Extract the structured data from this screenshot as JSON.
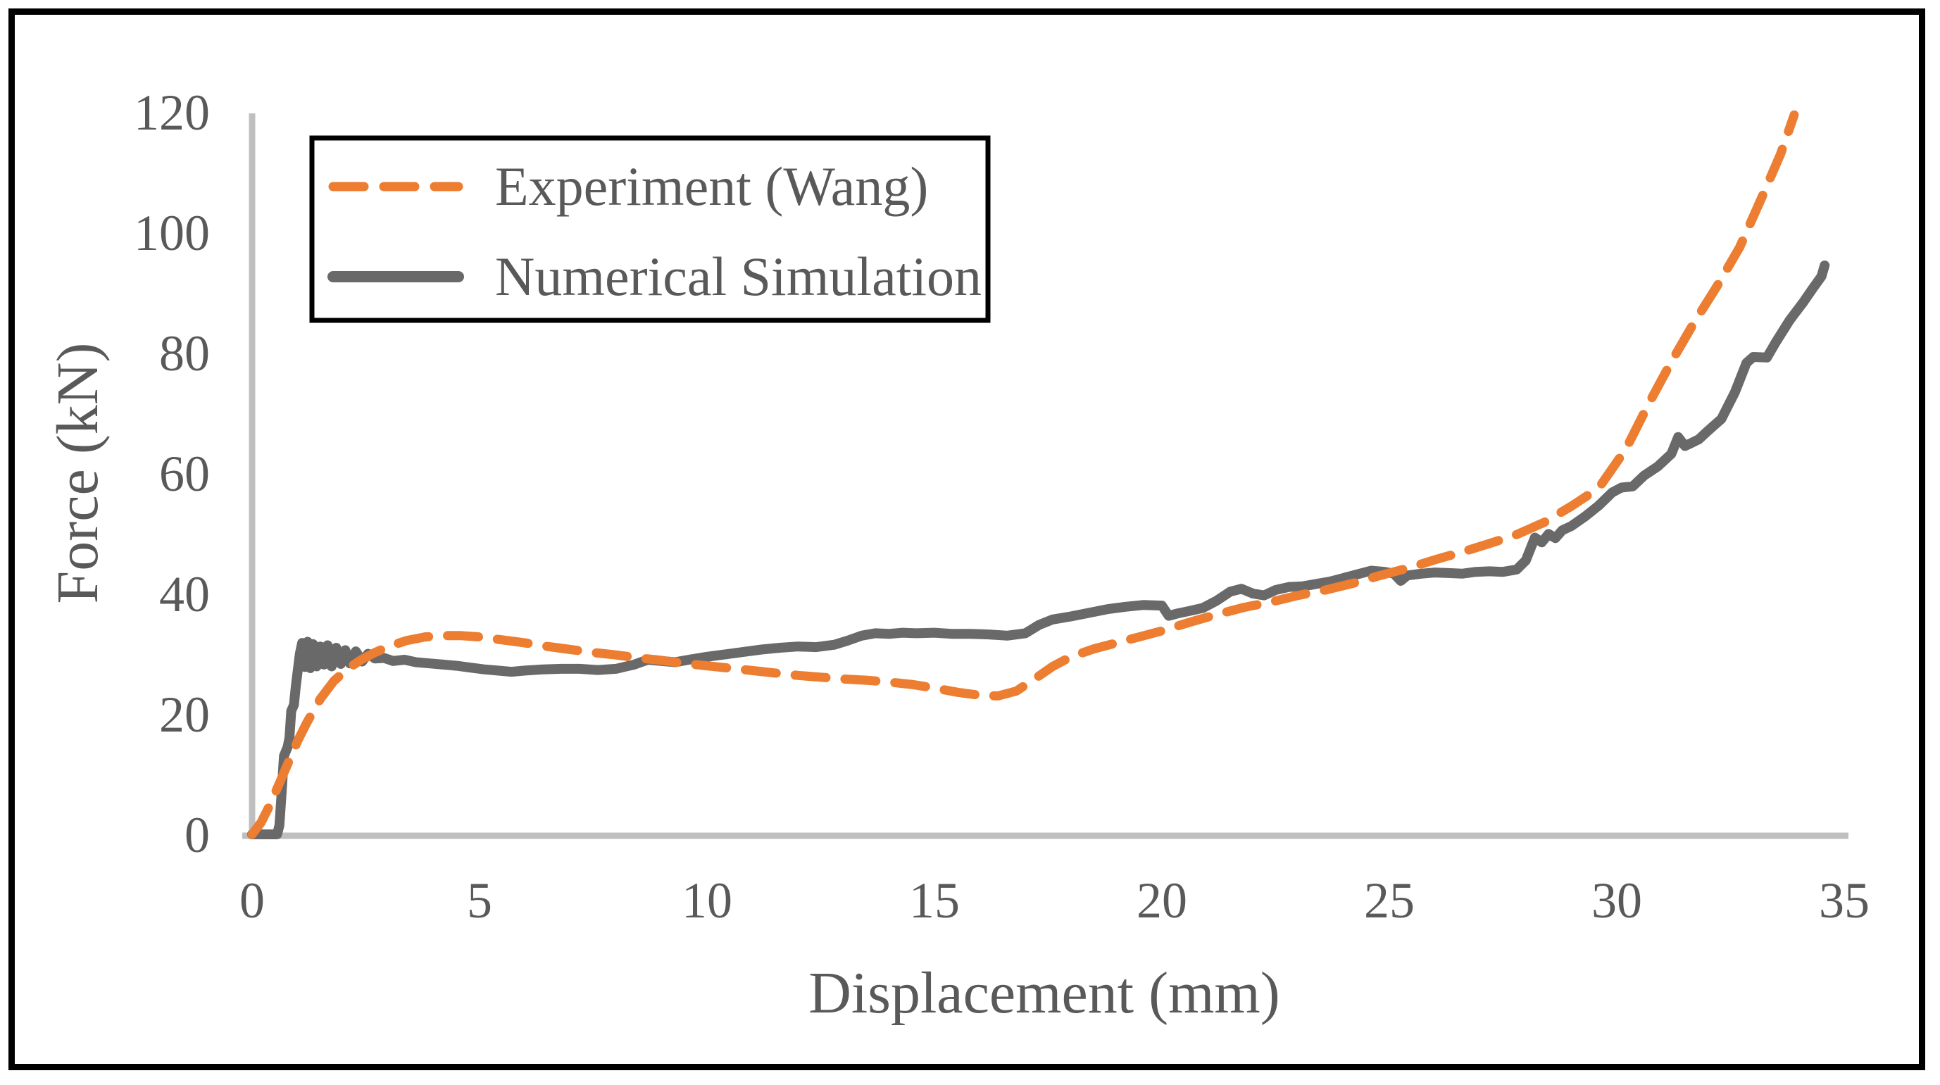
{
  "chart_data": {
    "type": "line",
    "title": "",
    "xlabel": "Displacement (mm)",
    "ylabel": "Force (kN)",
    "xlim": [
      0,
      35
    ],
    "ylim": [
      0,
      120
    ],
    "x_ticks": [
      0,
      5,
      10,
      15,
      20,
      25,
      30,
      35
    ],
    "y_ticks": [
      0,
      20,
      40,
      60,
      80,
      100,
      120
    ],
    "grid": false,
    "legend_position": "top-left-inside",
    "colors": {
      "experiment": "#ED7D31",
      "simulation": "#696969",
      "axis_line": "#BFBFBF",
      "text": "#595959",
      "frame_border": "#000000",
      "legend_border": "#000000",
      "background": "#FFFFFF"
    },
    "series": [
      {
        "name": "Experiment (Wang)",
        "color": "#ED7D31",
        "style": "dashed",
        "points": [
          [
            0,
            0
          ],
          [
            0.2,
            2
          ],
          [
            0.4,
            5
          ],
          [
            0.6,
            8.5
          ],
          [
            0.8,
            12
          ],
          [
            1.0,
            15.5
          ],
          [
            1.2,
            18.5
          ],
          [
            1.5,
            22.5
          ],
          [
            1.8,
            25.5
          ],
          [
            2.1,
            27.5
          ],
          [
            2.4,
            29
          ],
          [
            2.7,
            30.2
          ],
          [
            3.0,
            31.2
          ],
          [
            3.4,
            32.2
          ],
          [
            3.8,
            32.8
          ],
          [
            4.2,
            33
          ],
          [
            4.6,
            33
          ],
          [
            5.0,
            32.8
          ],
          [
            5.5,
            32.3
          ],
          [
            6.0,
            31.8
          ],
          [
            6.5,
            31.2
          ],
          [
            7.0,
            30.7
          ],
          [
            7.5,
            30.2
          ],
          [
            8.0,
            29.8
          ],
          [
            8.5,
            29.3
          ],
          [
            9.0,
            28.9
          ],
          [
            9.5,
            28.4
          ],
          [
            10.0,
            28.0
          ],
          [
            10.5,
            27.6
          ],
          [
            11.0,
            27.2
          ],
          [
            11.5,
            26.8
          ],
          [
            12.0,
            26.4
          ],
          [
            12.5,
            26.1
          ],
          [
            13.0,
            25.8
          ],
          [
            13.5,
            25.6
          ],
          [
            14.0,
            25.3
          ],
          [
            14.5,
            24.9
          ],
          [
            15.0,
            24.3
          ],
          [
            15.5,
            23.6
          ],
          [
            16.0,
            23.1
          ],
          [
            16.4,
            23.0
          ],
          [
            16.8,
            23.8
          ],
          [
            17.2,
            25.8
          ],
          [
            17.6,
            27.9
          ],
          [
            18.0,
            29.5
          ],
          [
            18.5,
            30.8
          ],
          [
            19.0,
            31.8
          ],
          [
            19.5,
            32.8
          ],
          [
            20.0,
            33.8
          ],
          [
            20.6,
            35.2
          ],
          [
            21.2,
            36.5
          ],
          [
            21.8,
            37.7
          ],
          [
            22.4,
            38.6
          ],
          [
            23.0,
            39.7
          ],
          [
            23.6,
            40.6
          ],
          [
            24.2,
            41.7
          ],
          [
            24.8,
            43.0
          ],
          [
            25.4,
            44.2
          ],
          [
            26.0,
            45.6
          ],
          [
            26.6,
            46.9
          ],
          [
            27.2,
            48.3
          ],
          [
            27.8,
            49.8
          ],
          [
            28.4,
            51.8
          ],
          [
            29.0,
            54.5
          ],
          [
            29.6,
            57.5
          ],
          [
            30.2,
            64.0
          ],
          [
            30.7,
            71.5
          ],
          [
            31.2,
            78.5
          ],
          [
            31.7,
            85.0
          ],
          [
            32.2,
            91.0
          ],
          [
            32.7,
            97.5
          ],
          [
            33.2,
            106.0
          ],
          [
            33.6,
            113.0
          ],
          [
            33.9,
            119.5
          ]
        ]
      },
      {
        "name": "Numerical Simulation",
        "color": "#696969",
        "style": "solid",
        "points": [
          [
            0,
            0
          ],
          [
            0.55,
            0
          ],
          [
            0.6,
            1.5
          ],
          [
            0.65,
            7
          ],
          [
            0.7,
            13
          ],
          [
            0.78,
            14.5
          ],
          [
            0.82,
            16
          ],
          [
            0.86,
            20.5
          ],
          [
            0.92,
            21.5
          ],
          [
            0.96,
            24.5
          ],
          [
            1.0,
            27
          ],
          [
            1.05,
            30
          ],
          [
            1.1,
            31.8
          ],
          [
            1.16,
            27.8
          ],
          [
            1.22,
            32
          ],
          [
            1.28,
            27.6
          ],
          [
            1.34,
            31.6
          ],
          [
            1.42,
            27.9
          ],
          [
            1.5,
            31.2
          ],
          [
            1.58,
            28.2
          ],
          [
            1.66,
            31.4
          ],
          [
            1.75,
            27.9
          ],
          [
            1.85,
            31.0
          ],
          [
            1.95,
            28.3
          ],
          [
            2.05,
            30.6
          ],
          [
            2.15,
            28.4
          ],
          [
            2.28,
            30.4
          ],
          [
            2.42,
            28.7
          ],
          [
            2.55,
            30.0
          ],
          [
            2.7,
            29.2
          ],
          [
            2.9,
            29.3
          ],
          [
            3.1,
            28.8
          ],
          [
            3.35,
            29.0
          ],
          [
            3.6,
            28.6
          ],
          [
            3.9,
            28.4
          ],
          [
            4.2,
            28.2
          ],
          [
            4.5,
            28.0
          ],
          [
            4.8,
            27.7
          ],
          [
            5.1,
            27.4
          ],
          [
            5.4,
            27.2
          ],
          [
            5.7,
            27.0
          ],
          [
            6.0,
            27.2
          ],
          [
            6.4,
            27.4
          ],
          [
            6.8,
            27.5
          ],
          [
            7.2,
            27.5
          ],
          [
            7.6,
            27.3
          ],
          [
            8.0,
            27.5
          ],
          [
            8.4,
            28.2
          ],
          [
            8.7,
            29.0
          ],
          [
            9.0,
            28.8
          ],
          [
            9.3,
            28.6
          ],
          [
            9.6,
            29.0
          ],
          [
            10.0,
            29.5
          ],
          [
            10.4,
            29.9
          ],
          [
            10.8,
            30.3
          ],
          [
            11.2,
            30.7
          ],
          [
            11.6,
            31.0
          ],
          [
            12.0,
            31.2
          ],
          [
            12.4,
            31.1
          ],
          [
            12.8,
            31.5
          ],
          [
            13.1,
            32.2
          ],
          [
            13.4,
            33.0
          ],
          [
            13.7,
            33.4
          ],
          [
            14.0,
            33.3
          ],
          [
            14.3,
            33.5
          ],
          [
            14.6,
            33.4
          ],
          [
            15.0,
            33.5
          ],
          [
            15.4,
            33.3
          ],
          [
            15.8,
            33.3
          ],
          [
            16.2,
            33.2
          ],
          [
            16.6,
            33.0
          ],
          [
            17.0,
            33.4
          ],
          [
            17.3,
            34.8
          ],
          [
            17.6,
            35.7
          ],
          [
            18.0,
            36.2
          ],
          [
            18.4,
            36.8
          ],
          [
            18.8,
            37.4
          ],
          [
            19.2,
            37.8
          ],
          [
            19.6,
            38.1
          ],
          [
            20.0,
            38.0
          ],
          [
            20.15,
            36.3
          ],
          [
            20.35,
            36.7
          ],
          [
            20.6,
            37.1
          ],
          [
            20.9,
            37.6
          ],
          [
            21.2,
            38.8
          ],
          [
            21.5,
            40.3
          ],
          [
            21.75,
            40.8
          ],
          [
            22.0,
            40.0
          ],
          [
            22.25,
            39.7
          ],
          [
            22.5,
            40.6
          ],
          [
            22.8,
            41.1
          ],
          [
            23.1,
            41.2
          ],
          [
            23.4,
            41.6
          ],
          [
            23.7,
            42.0
          ],
          [
            24.0,
            42.6
          ],
          [
            24.3,
            43.2
          ],
          [
            24.6,
            43.8
          ],
          [
            24.9,
            43.6
          ],
          [
            25.1,
            43.3
          ],
          [
            25.25,
            42.1
          ],
          [
            25.4,
            43.0
          ],
          [
            25.7,
            43.3
          ],
          [
            26.0,
            43.5
          ],
          [
            26.3,
            43.4
          ],
          [
            26.6,
            43.3
          ],
          [
            26.9,
            43.6
          ],
          [
            27.2,
            43.7
          ],
          [
            27.5,
            43.6
          ],
          [
            27.8,
            44.0
          ],
          [
            28.0,
            45.5
          ],
          [
            28.2,
            49.3
          ],
          [
            28.35,
            48.5
          ],
          [
            28.5,
            49.9
          ],
          [
            28.65,
            49.2
          ],
          [
            28.8,
            50.5
          ],
          [
            29.0,
            51.2
          ],
          [
            29.3,
            52.8
          ],
          [
            29.6,
            54.6
          ],
          [
            29.9,
            56.8
          ],
          [
            30.1,
            57.6
          ],
          [
            30.35,
            57.8
          ],
          [
            30.6,
            59.6
          ],
          [
            30.9,
            61.1
          ],
          [
            31.2,
            63.2
          ],
          [
            31.35,
            66.0
          ],
          [
            31.5,
            64.5
          ],
          [
            31.8,
            65.6
          ],
          [
            32.0,
            67.0
          ],
          [
            32.3,
            69.0
          ],
          [
            32.6,
            73.5
          ],
          [
            32.85,
            78.3
          ],
          [
            33.0,
            79.3
          ],
          [
            33.3,
            79.2
          ],
          [
            33.5,
            81.8
          ],
          [
            33.8,
            85.4
          ],
          [
            34.1,
            88.4
          ],
          [
            34.3,
            90.6
          ],
          [
            34.5,
            92.7
          ],
          [
            34.57,
            94.5
          ]
        ]
      }
    ],
    "legend": [
      {
        "label": "Experiment (Wang)",
        "color": "#ED7D31",
        "style": "dashed"
      },
      {
        "label": "Numerical Simulation",
        "color": "#696969",
        "style": "solid"
      }
    ]
  }
}
